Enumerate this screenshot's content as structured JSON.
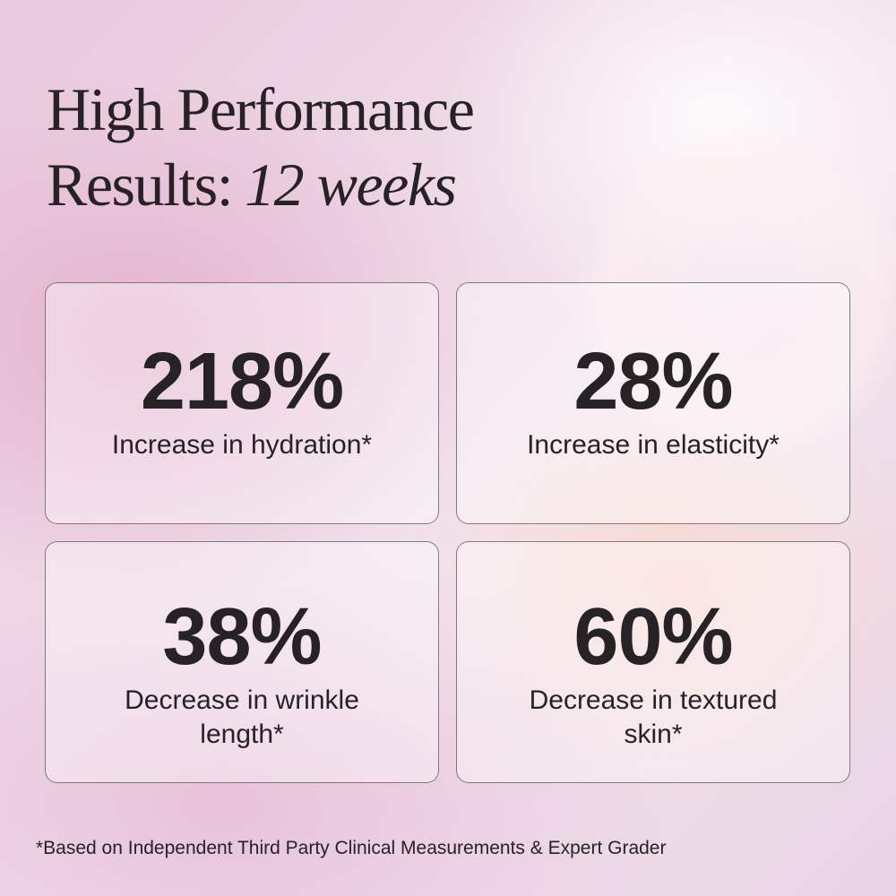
{
  "title": {
    "line1": "High Performance",
    "line2_regular": "Results:",
    "line2_italic": "12 weeks"
  },
  "cards": [
    {
      "stat": "218%",
      "label_lines": [
        "Increase in hydration*"
      ]
    },
    {
      "stat": "28%",
      "label_lines": [
        "Increase in elasticity*"
      ]
    },
    {
      "stat": "38%",
      "label_lines": [
        "Decrease in wrinkle",
        "length*"
      ]
    },
    {
      "stat": "60%",
      "label_lines": [
        "Decrease in textured",
        "skin*"
      ]
    }
  ],
  "footnote": "*Based on Independent Third Party Clinical Measurements & Expert Grader"
}
